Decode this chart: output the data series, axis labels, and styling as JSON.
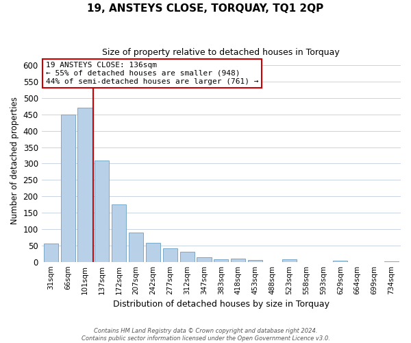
{
  "title": "19, ANSTEYS CLOSE, TORQUAY, TQ1 2QP",
  "subtitle": "Size of property relative to detached houses in Torquay",
  "xlabel": "Distribution of detached houses by size in Torquay",
  "ylabel": "Number of detached properties",
  "bar_labels": [
    "31sqm",
    "66sqm",
    "101sqm",
    "137sqm",
    "172sqm",
    "207sqm",
    "242sqm",
    "277sqm",
    "312sqm",
    "347sqm",
    "383sqm",
    "418sqm",
    "453sqm",
    "488sqm",
    "523sqm",
    "558sqm",
    "593sqm",
    "629sqm",
    "664sqm",
    "699sqm",
    "734sqm"
  ],
  "bar_values": [
    55,
    450,
    470,
    310,
    175,
    90,
    58,
    42,
    30,
    15,
    7,
    9,
    6,
    0,
    8,
    0,
    0,
    3,
    0,
    0,
    2
  ],
  "bar_color": "#b8d0e8",
  "bar_edge_color": "#6a9ec0",
  "vline_index": 2.5,
  "vline_color": "#cc0000",
  "ylim": [
    0,
    620
  ],
  "yticks": [
    0,
    50,
    100,
    150,
    200,
    250,
    300,
    350,
    400,
    450,
    500,
    550,
    600
  ],
  "annotation_line1": "19 ANSTEYS CLOSE: 136sqm",
  "annotation_line2": "← 55% of detached houses are smaller (948)",
  "annotation_line3": "44% of semi-detached houses are larger (761) →",
  "annotation_box_color": "#ffffff",
  "annotation_box_edge": "#cc0000",
  "footer_line1": "Contains HM Land Registry data © Crown copyright and database right 2024.",
  "footer_line2": "Contains public sector information licensed under the Open Government Licence v3.0.",
  "background_color": "#ffffff",
  "grid_color": "#c8d4e4"
}
